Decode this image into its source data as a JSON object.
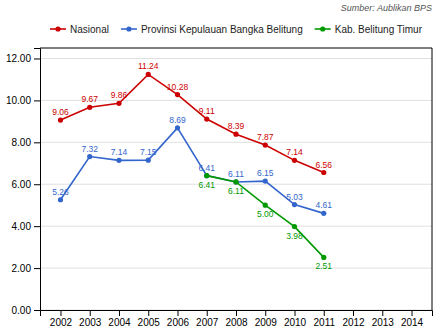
{
  "chart_data": {
    "type": "line",
    "annotations": [
      "Sumber: Aublikan BPS"
    ],
    "x": [
      2002,
      2003,
      2004,
      2005,
      2006,
      2007,
      2008,
      2009,
      2010,
      2011
    ],
    "series": [
      {
        "name": "Nasional",
        "color": "#cc0000",
        "values": [
          9.06,
          9.67,
          9.86,
          11.24,
          10.28,
          9.11,
          8.39,
          7.87,
          7.14,
          6.56
        ],
        "value_labels": [
          "9.06",
          "9.67",
          "9.86",
          "11.24",
          "10.28",
          "9.11",
          "8.39",
          "7.87",
          "7.14",
          "6.56"
        ]
      },
      {
        "name": "Provinsi Kepulauan Bangka Belitung",
        "color": "#3366cc",
        "values": [
          5.26,
          7.32,
          7.14,
          7.15,
          8.69,
          6.41,
          6.11,
          6.15,
          5.03,
          4.61
        ],
        "value_labels": [
          "5.26",
          "7.32",
          "7.14",
          "7.15",
          "8.69",
          "6.41",
          "6.11",
          "6.15",
          "5.03",
          "4.61"
        ]
      },
      {
        "name": "Kab. Belitung Timur",
        "color": "#009900",
        "values": [
          null,
          null,
          null,
          null,
          null,
          6.41,
          6.11,
          5.0,
          3.98,
          2.51
        ],
        "value_labels": [
          null,
          null,
          null,
          null,
          null,
          "6.41",
          "6.11",
          "5.00",
          "3.98",
          "2.51"
        ]
      }
    ],
    "xlim": [
      2001.3,
      2014.7
    ],
    "xticks": [
      2002,
      2003,
      2004,
      2005,
      2006,
      2007,
      2008,
      2009,
      2010,
      2011,
      2012,
      2013,
      2014
    ],
    "ylim": [
      0.0,
      12.5
    ],
    "yticks": [
      {
        "value": 0,
        "label": "0.00"
      },
      {
        "value": 2,
        "label": "2.00"
      },
      {
        "value": 4,
        "label": "4.00"
      },
      {
        "value": 6,
        "label": "6.00"
      },
      {
        "value": 8,
        "label": "8.00"
      },
      {
        "value": 10,
        "label": "10.00"
      },
      {
        "value": 12,
        "label": "12.00"
      }
    ],
    "grid": true,
    "legend": "top",
    "marker": "circle",
    "data_labels": true
  }
}
